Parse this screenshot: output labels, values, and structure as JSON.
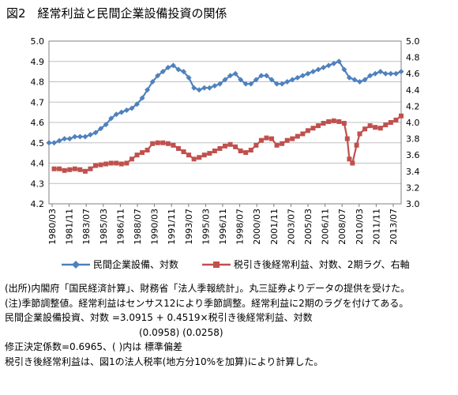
{
  "figure_title": "図2　経常利益と民間企業設備投資の関係",
  "chart_data": {
    "type": "line",
    "title": "",
    "left_axis": {
      "min": 4.2,
      "max": 5.0,
      "step": 0.1,
      "ticks": [
        "4.2",
        "4.3",
        "4.4",
        "4.5",
        "4.6",
        "4.7",
        "4.8",
        "4.9",
        "5.0"
      ]
    },
    "right_axis": {
      "min": 3.0,
      "max": 5.0,
      "step": 0.2,
      "ticks": [
        "3.0",
        "3.2",
        "3.4",
        "3.6",
        "3.8",
        "4.0",
        "4.2",
        "4.4",
        "4.6",
        "4.8",
        "5.0"
      ]
    },
    "x_range": [
      1980.0,
      2014.0
    ],
    "x_labels": [
      "1980/03",
      "1981/11",
      "1983/07",
      "1985/03",
      "1986/11",
      "1988/07",
      "1990/03",
      "1991/11",
      "1993/07",
      "1995/03",
      "1996/11",
      "1998/07",
      "2000/03",
      "2001/11",
      "2003/07",
      "2005/03",
      "2006/11",
      "2008/07",
      "2010/03",
      "2011/11",
      "2013/07"
    ],
    "grid": true,
    "legend_position": "bottom",
    "series": [
      {
        "name": "民間企業設備、対数",
        "axis": "left",
        "color": "#4f81bd",
        "marker": "diamond",
        "points": [
          [
            1980.0,
            4.5
          ],
          [
            1980.5,
            4.5
          ],
          [
            1981.0,
            4.51
          ],
          [
            1981.5,
            4.52
          ],
          [
            1982.0,
            4.52
          ],
          [
            1982.5,
            4.53
          ],
          [
            1983.0,
            4.53
          ],
          [
            1983.5,
            4.53
          ],
          [
            1984.0,
            4.54
          ],
          [
            1984.5,
            4.55
          ],
          [
            1985.0,
            4.57
          ],
          [
            1985.5,
            4.59
          ],
          [
            1986.0,
            4.62
          ],
          [
            1986.5,
            4.64
          ],
          [
            1987.0,
            4.65
          ],
          [
            1987.5,
            4.66
          ],
          [
            1988.0,
            4.67
          ],
          [
            1988.5,
            4.69
          ],
          [
            1989.0,
            4.72
          ],
          [
            1989.5,
            4.76
          ],
          [
            1990.0,
            4.8
          ],
          [
            1990.5,
            4.83
          ],
          [
            1991.0,
            4.85
          ],
          [
            1991.5,
            4.87
          ],
          [
            1992.0,
            4.88
          ],
          [
            1992.5,
            4.86
          ],
          [
            1993.0,
            4.85
          ],
          [
            1993.5,
            4.82
          ],
          [
            1994.0,
            4.77
          ],
          [
            1994.5,
            4.76
          ],
          [
            1995.0,
            4.77
          ],
          [
            1995.5,
            4.77
          ],
          [
            1996.0,
            4.78
          ],
          [
            1996.5,
            4.79
          ],
          [
            1997.0,
            4.81
          ],
          [
            1997.5,
            4.83
          ],
          [
            1998.0,
            4.84
          ],
          [
            1998.5,
            4.81
          ],
          [
            1999.0,
            4.79
          ],
          [
            1999.5,
            4.79
          ],
          [
            2000.0,
            4.81
          ],
          [
            2000.5,
            4.83
          ],
          [
            2001.0,
            4.83
          ],
          [
            2001.5,
            4.81
          ],
          [
            2002.0,
            4.79
          ],
          [
            2002.5,
            4.79
          ],
          [
            2003.0,
            4.8
          ],
          [
            2003.5,
            4.81
          ],
          [
            2004.0,
            4.82
          ],
          [
            2004.5,
            4.83
          ],
          [
            2005.0,
            4.84
          ],
          [
            2005.5,
            4.85
          ],
          [
            2006.0,
            4.86
          ],
          [
            2006.5,
            4.87
          ],
          [
            2007.0,
            4.88
          ],
          [
            2007.5,
            4.89
          ],
          [
            2008.0,
            4.9
          ],
          [
            2008.5,
            4.86
          ],
          [
            2009.0,
            4.82
          ],
          [
            2009.5,
            4.81
          ],
          [
            2010.0,
            4.8
          ],
          [
            2010.5,
            4.81
          ],
          [
            2011.0,
            4.83
          ],
          [
            2011.5,
            4.84
          ],
          [
            2012.0,
            4.85
          ],
          [
            2012.5,
            4.84
          ],
          [
            2013.0,
            4.84
          ],
          [
            2013.5,
            4.84
          ],
          [
            2014.0,
            4.85
          ]
        ]
      },
      {
        "name": "税引き後経常利益、対数、2期ラグ、右軸",
        "axis": "right",
        "color": "#c0504d",
        "marker": "square",
        "points": [
          [
            1980.5,
            3.43
          ],
          [
            1981.0,
            3.43
          ],
          [
            1981.5,
            3.41
          ],
          [
            1982.0,
            3.42
          ],
          [
            1982.5,
            3.43
          ],
          [
            1983.0,
            3.42
          ],
          [
            1983.5,
            3.4
          ],
          [
            1984.0,
            3.43
          ],
          [
            1984.5,
            3.47
          ],
          [
            1985.0,
            3.48
          ],
          [
            1985.5,
            3.49
          ],
          [
            1986.0,
            3.5
          ],
          [
            1986.5,
            3.5
          ],
          [
            1987.0,
            3.49
          ],
          [
            1987.5,
            3.5
          ],
          [
            1988.0,
            3.55
          ],
          [
            1988.5,
            3.6
          ],
          [
            1989.0,
            3.63
          ],
          [
            1989.5,
            3.66
          ],
          [
            1990.0,
            3.74
          ],
          [
            1990.5,
            3.75
          ],
          [
            1991.0,
            3.75
          ],
          [
            1991.5,
            3.74
          ],
          [
            1992.0,
            3.72
          ],
          [
            1992.5,
            3.68
          ],
          [
            1993.0,
            3.64
          ],
          [
            1993.5,
            3.6
          ],
          [
            1994.0,
            3.55
          ],
          [
            1994.5,
            3.57
          ],
          [
            1995.0,
            3.6
          ],
          [
            1995.5,
            3.62
          ],
          [
            1996.0,
            3.65
          ],
          [
            1996.5,
            3.68
          ],
          [
            1997.0,
            3.71
          ],
          [
            1997.5,
            3.73
          ],
          [
            1998.0,
            3.7
          ],
          [
            1998.5,
            3.65
          ],
          [
            1999.0,
            3.63
          ],
          [
            1999.5,
            3.66
          ],
          [
            2000.0,
            3.72
          ],
          [
            2000.5,
            3.78
          ],
          [
            2001.0,
            3.81
          ],
          [
            2001.5,
            3.8
          ],
          [
            2002.0,
            3.72
          ],
          [
            2002.5,
            3.74
          ],
          [
            2003.0,
            3.78
          ],
          [
            2003.5,
            3.8
          ],
          [
            2004.0,
            3.83
          ],
          [
            2004.5,
            3.86
          ],
          [
            2005.0,
            3.9
          ],
          [
            2005.5,
            3.93
          ],
          [
            2006.0,
            3.96
          ],
          [
            2006.5,
            3.99
          ],
          [
            2007.0,
            4.01
          ],
          [
            2007.5,
            4.02
          ],
          [
            2008.0,
            4.01
          ],
          [
            2008.5,
            3.99
          ],
          [
            2008.8,
            3.8
          ],
          [
            2009.0,
            3.55
          ],
          [
            2009.3,
            3.5
          ],
          [
            2009.7,
            3.72
          ],
          [
            2010.0,
            3.86
          ],
          [
            2010.5,
            3.92
          ],
          [
            2011.0,
            3.96
          ],
          [
            2011.5,
            3.94
          ],
          [
            2012.0,
            3.93
          ],
          [
            2012.5,
            3.97
          ],
          [
            2013.0,
            4.0
          ],
          [
            2013.5,
            4.03
          ],
          [
            2014.0,
            4.08
          ]
        ]
      }
    ]
  },
  "notes": [
    "(出所)内閣府「国民経済計算」、財務省「法人季報統計」。丸三証券よりデータの提供を受けた。",
    "(注)季節調整値。経常利益はセンサス12により季節調整。経常利益に2期のラグを付けてある。",
    "民間企業設備投資、対数 =3.0915 + 0.4519×税引き後経常利益、対数",
    "(0.0958)  (0.0258)",
    "修正決定係数=0.6965、(  )内は 標準偏差",
    "税引き後経常利益は、図1の法人税率(地方分10%を加算)により計算した。"
  ]
}
